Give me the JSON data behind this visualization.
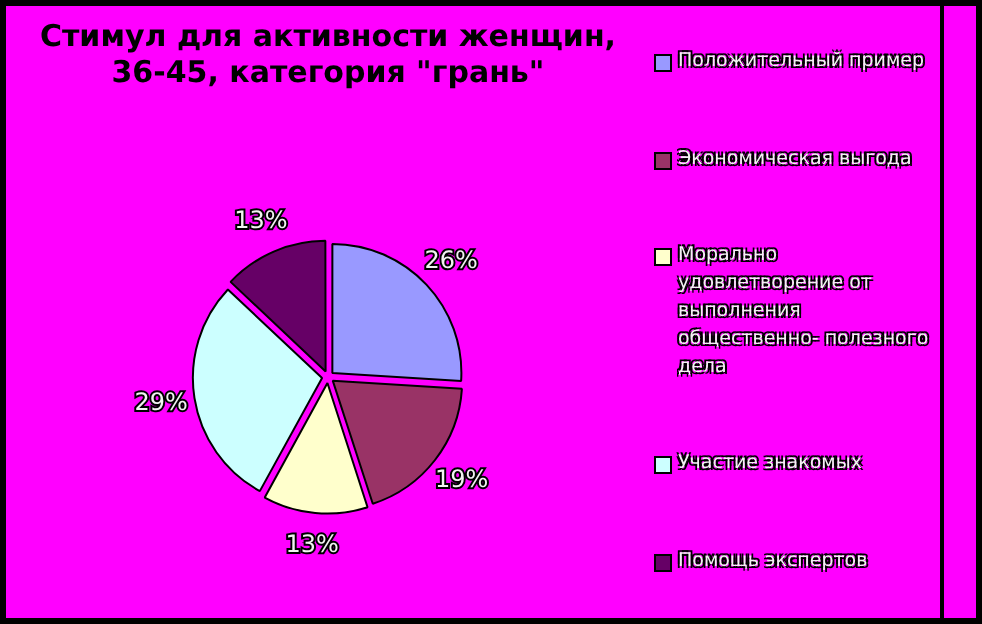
{
  "chart_data": {
    "type": "pie",
    "title": "Стимул для активности женщин, 36-45, категория \"грань\"",
    "categories": [
      "Положительный пример",
      "Экономическая выгода",
      "Морально удовлетворение от выполнения общественно- полезного дела",
      "Участие знакомых",
      "Помощь экспертов"
    ],
    "values": [
      26,
      19,
      13,
      29,
      13
    ],
    "colors": [
      "#9999ff",
      "#993366",
      "#ffffcc",
      "#ccffff",
      "#660066"
    ],
    "value_labels": [
      "26%",
      "19%",
      "13%",
      "29%",
      "13%"
    ],
    "legend": "right"
  }
}
